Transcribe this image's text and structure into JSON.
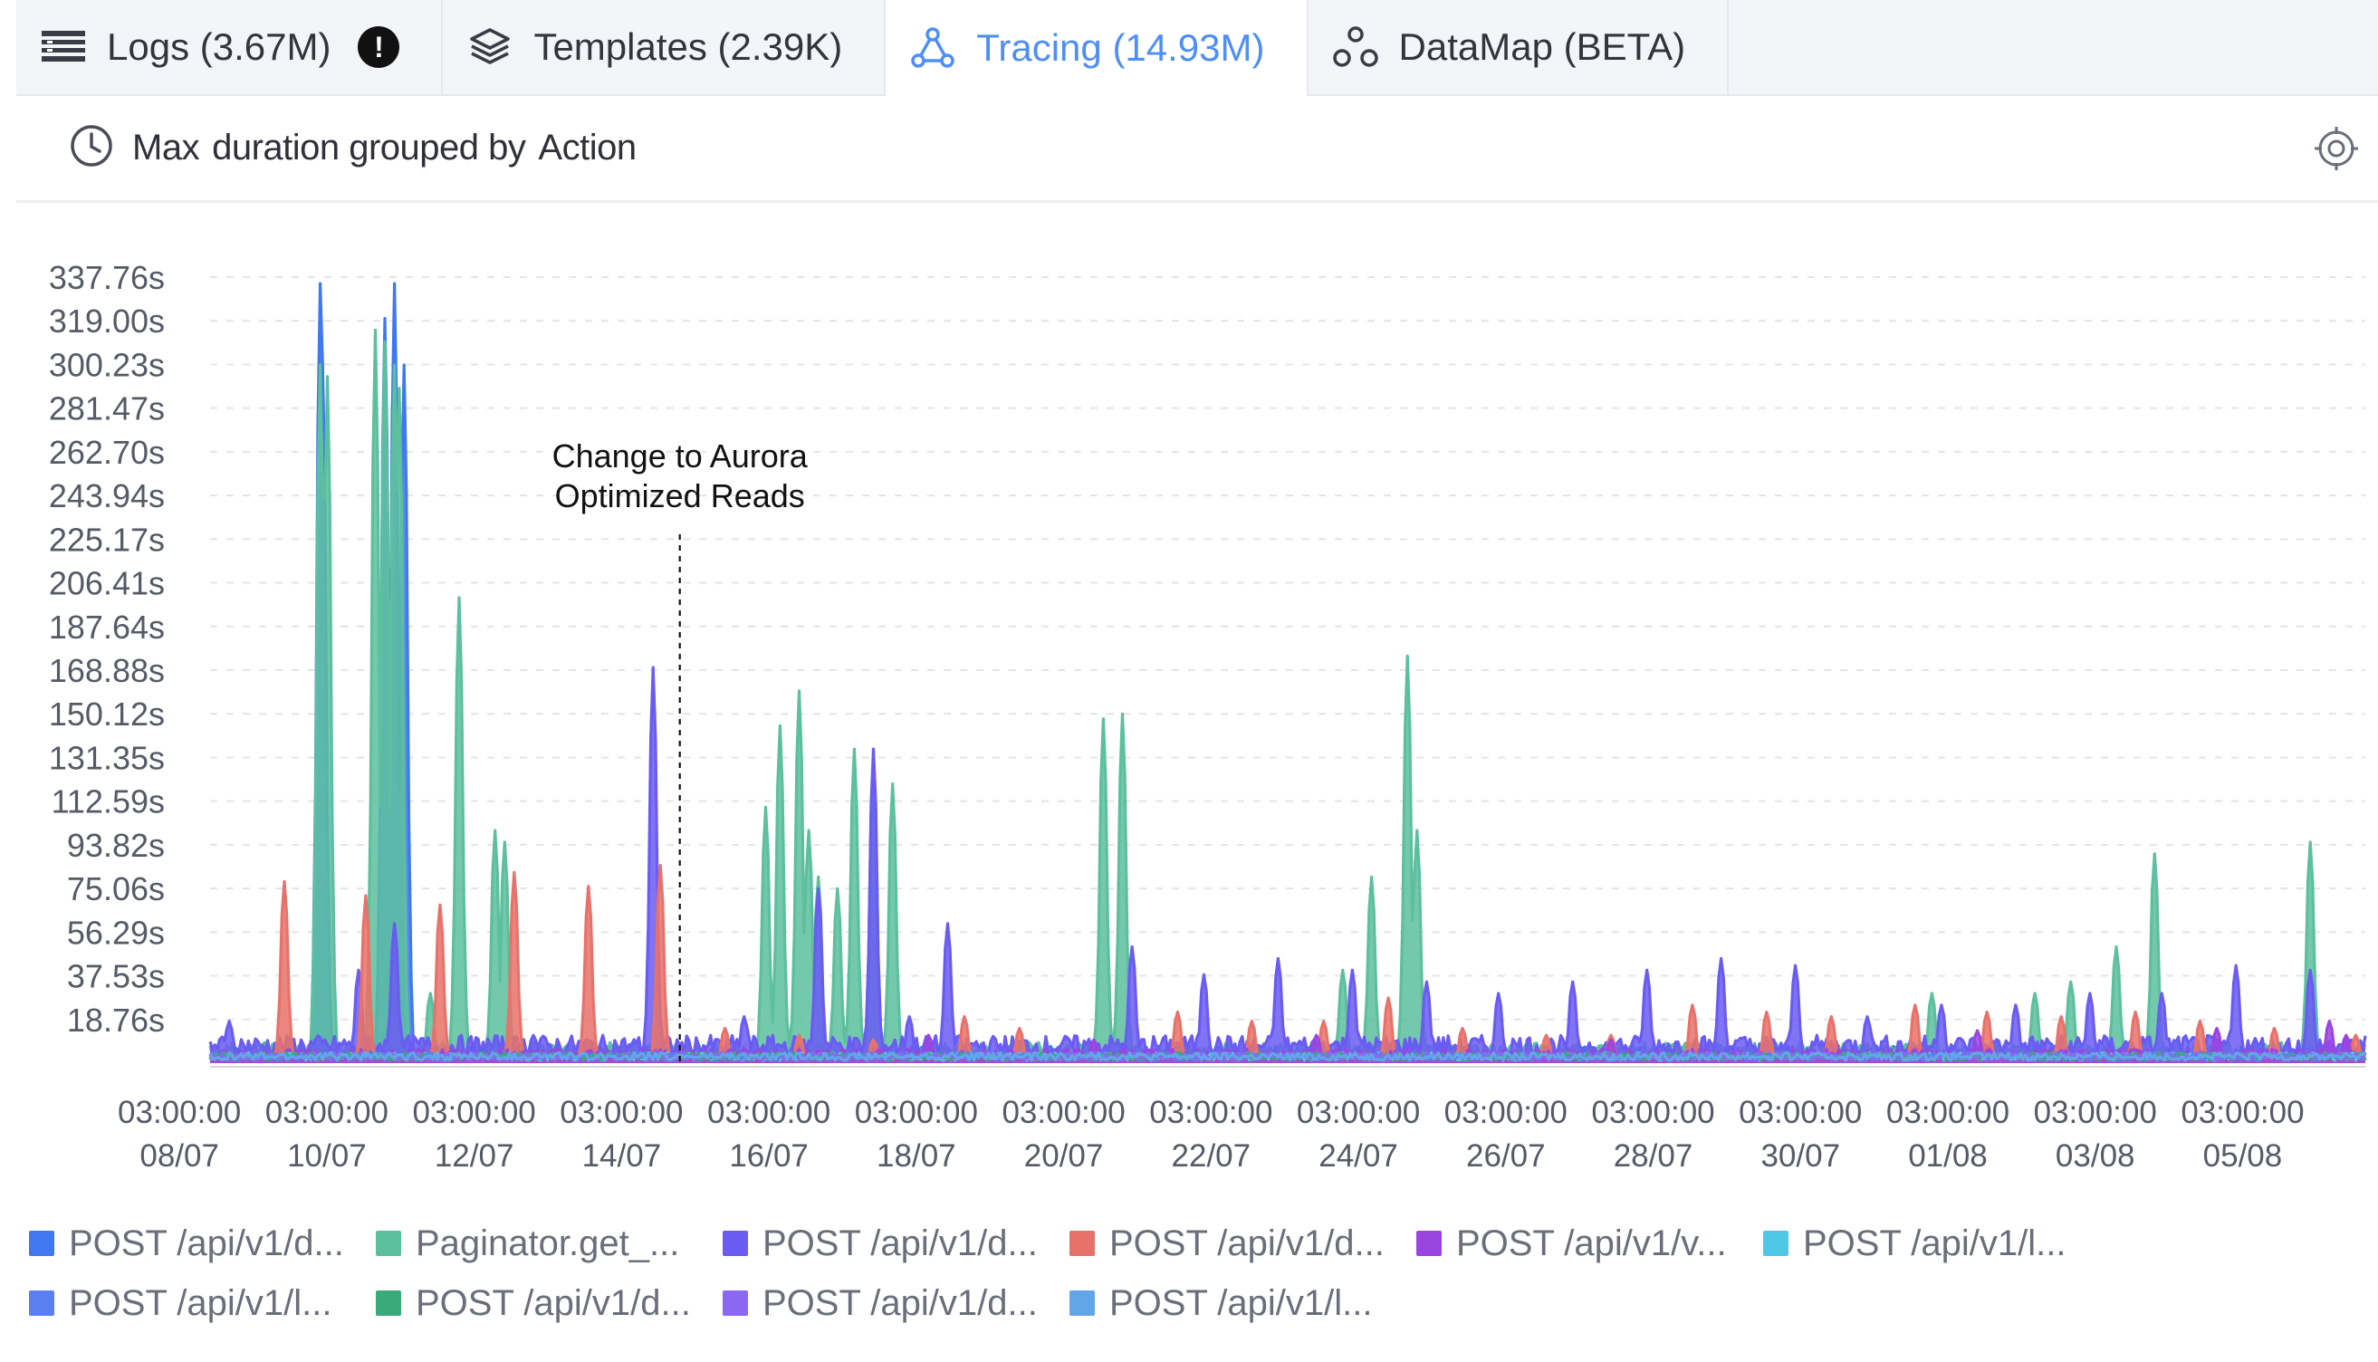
{
  "tabs": [
    {
      "label": "Logs (3.67M)",
      "icon": "list-icon",
      "alert": "!",
      "active": false
    },
    {
      "label": "Templates (2.39K)",
      "icon": "layers-icon",
      "active": false
    },
    {
      "label": "Tracing (14.93M)",
      "icon": "tracing-icon",
      "active": true
    },
    {
      "label": "DataMap (BETA)",
      "icon": "datamap-icon",
      "active": false
    }
  ],
  "header": {
    "aggregation": "Max",
    "metric_text": "duration grouped by",
    "group_by": "Action"
  },
  "colors": {
    "accent": "#4f8ef7",
    "blue": "#3f78f0",
    "teal": "#5cbf9e",
    "indigo": "#6a5cf2",
    "salmon": "#e8726a",
    "purple": "#9a45e0",
    "cyan": "#4fc7e6",
    "sky": "#62a6e8",
    "violet": "#8a68f2",
    "green": "#3aaa7a"
  },
  "chart_data": {
    "type": "line",
    "y_ticks": [
      "18.76s",
      "37.53s",
      "56.29s",
      "75.06s",
      "93.82s",
      "112.59s",
      "131.35s",
      "150.12s",
      "168.88s",
      "187.64s",
      "206.41s",
      "225.17s",
      "243.94s",
      "262.70s",
      "281.47s",
      "300.23s",
      "319.00s",
      "337.76s"
    ],
    "ylim": [
      0,
      337.76
    ],
    "x_ticks": [
      {
        "time": "03:00:00",
        "date": "08/07"
      },
      {
        "time": "03:00:00",
        "date": "10/07"
      },
      {
        "time": "03:00:00",
        "date": "12/07"
      },
      {
        "time": "03:00:00",
        "date": "14/07"
      },
      {
        "time": "03:00:00",
        "date": "16/07"
      },
      {
        "time": "03:00:00",
        "date": "18/07"
      },
      {
        "time": "03:00:00",
        "date": "20/07"
      },
      {
        "time": "03:00:00",
        "date": "22/07"
      },
      {
        "time": "03:00:00",
        "date": "24/07"
      },
      {
        "time": "03:00:00",
        "date": "26/07"
      },
      {
        "time": "03:00:00",
        "date": "28/07"
      },
      {
        "time": "03:00:00",
        "date": "30/07"
      },
      {
        "time": "03:00:00",
        "date": "01/08"
      },
      {
        "time": "03:00:00",
        "date": "03/08"
      },
      {
        "time": "03:00:00",
        "date": "05/08"
      }
    ],
    "xlim": [
      "08/07 00:00",
      "06/08 06:00"
    ],
    "grid": true,
    "annotation": {
      "lines": [
        "Change to Aurora",
        "Optimized Reads"
      ],
      "x": "14/07 09:00"
    },
    "series": [
      {
        "name": "POST /api/v1/d...",
        "color": "#3f78f0",
        "baseline": 5,
        "spikes": [
          [
            "09/07 12:00",
            335
          ],
          [
            "09/07 13:00",
            300
          ],
          [
            "10/07 09:00",
            320
          ],
          [
            "10/07 12:00",
            335
          ],
          [
            "10/07 15:00",
            300
          ],
          [
            "09/07 13:00",
            70
          ]
        ]
      },
      {
        "name": "Paginator.get_...",
        "color": "#5cbf9e",
        "baseline": 6,
        "spikes": [
          [
            "09/07 12:00",
            300
          ],
          [
            "09/07 14:00",
            295
          ],
          [
            "10/07 06:00",
            315
          ],
          [
            "10/07 09:00",
            310
          ],
          [
            "10/07 12:00",
            300
          ],
          [
            "10/07 14:00",
            290
          ],
          [
            "11/07 00:00",
            30
          ],
          [
            "11/07 09:00",
            200
          ],
          [
            "11/07 21:00",
            100
          ],
          [
            "12/07 00:00",
            95
          ],
          [
            "15/07 13:00",
            110
          ],
          [
            "15/07 18:00",
            145
          ],
          [
            "16/07 00:00",
            160
          ],
          [
            "16/07 03:00",
            100
          ],
          [
            "16/07 06:00",
            80
          ],
          [
            "16/07 12:00",
            75
          ],
          [
            "16/07 18:00",
            135
          ],
          [
            "17/07 00:00",
            130
          ],
          [
            "17/07 06:00",
            120
          ],
          [
            "20/07 03:00",
            148
          ],
          [
            "20/07 09:00",
            150
          ],
          [
            "23/07 09:00",
            40
          ],
          [
            "23/07 18:00",
            80
          ],
          [
            "24/07 06:00",
            175
          ],
          [
            "24/07 09:00",
            100
          ],
          [
            "31/07 09:00",
            30
          ],
          [
            "01/08 18:00",
            30
          ],
          [
            "02/08 06:00",
            35
          ],
          [
            "02/08 21:00",
            50
          ],
          [
            "03/08 09:00",
            90
          ],
          [
            "05/08 12:00",
            95
          ]
        ]
      },
      {
        "name": "POST /api/v1/d...",
        "color": "#6a5cf2",
        "baseline": 8,
        "spikes": [
          [
            "08/07 06:00",
            18
          ],
          [
            "10/07 00:00",
            40
          ],
          [
            "10/07 12:00",
            60
          ],
          [
            "12/07 09:00",
            12
          ],
          [
            "14/07 00:00",
            170
          ],
          [
            "15/07 06:00",
            20
          ],
          [
            "16/07 06:00",
            75
          ],
          [
            "17/07 00:00",
            135
          ],
          [
            "17/07 12:00",
            20
          ],
          [
            "18/07 00:00",
            60
          ],
          [
            "20/07 12:00",
            50
          ],
          [
            "21/07 12:00",
            38
          ],
          [
            "22/07 12:00",
            45
          ],
          [
            "23/07 12:00",
            40
          ],
          [
            "24/07 12:00",
            35
          ],
          [
            "25/07 12:00",
            30
          ],
          [
            "26/07 12:00",
            35
          ],
          [
            "27/07 12:00",
            40
          ],
          [
            "28/07 12:00",
            45
          ],
          [
            "29/07 12:00",
            42
          ],
          [
            "30/07 12:00",
            20
          ],
          [
            "31/07 12:00",
            25
          ],
          [
            "01/08 12:00",
            25
          ],
          [
            "02/08 12:00",
            30
          ],
          [
            "03/08 12:00",
            30
          ],
          [
            "04/08 12:00",
            42
          ],
          [
            "05/08 12:00",
            40
          ]
        ]
      },
      {
        "name": "POST /api/v1/d...",
        "color": "#e8726a",
        "baseline": 2,
        "spikes": [
          [
            "09/07 00:00",
            78
          ],
          [
            "10/07 03:00",
            72
          ],
          [
            "11/07 03:00",
            68
          ],
          [
            "12/07 03:00",
            82
          ],
          [
            "13/07 03:00",
            76
          ],
          [
            "14/07 03:00",
            85
          ],
          [
            "15/07 00:00",
            15
          ],
          [
            "16/07 00:00",
            12
          ],
          [
            "17/07 00:00",
            10
          ],
          [
            "18/07 06:00",
            20
          ],
          [
            "19/07 00:00",
            15
          ],
          [
            "21/07 03:00",
            22
          ],
          [
            "22/07 03:00",
            18
          ],
          [
            "23/07 03:00",
            18
          ],
          [
            "24/07 00:00",
            28
          ],
          [
            "25/07 00:00",
            15
          ],
          [
            "26/07 03:00",
            12
          ],
          [
            "27/07 00:00",
            12
          ],
          [
            "28/07 03:00",
            25
          ],
          [
            "29/07 03:00",
            22
          ],
          [
            "30/07 00:00",
            20
          ],
          [
            "31/07 03:00",
            25
          ],
          [
            "01/08 03:00",
            22
          ],
          [
            "02/08 03:00",
            20
          ],
          [
            "03/08 03:00",
            22
          ],
          [
            "04/08 00:00",
            18
          ],
          [
            "05/08 00:00",
            15
          ],
          [
            "06/08 03:00",
            12
          ]
        ]
      },
      {
        "name": "POST /api/v1/v...",
        "color": "#9a45e0",
        "baseline": 4,
        "spikes": [
          [
            "17/07 18:00",
            12
          ],
          [
            "20/07 00:00",
            10
          ],
          [
            "23/07 00:00",
            12
          ],
          [
            "27/07 00:00",
            10
          ],
          [
            "01/08 00:00",
            14
          ],
          [
            "04/08 06:00",
            15
          ],
          [
            "05/08 18:00",
            18
          ],
          [
            "06/08 00:00",
            12
          ]
        ]
      },
      {
        "name": "POST /api/v1/l...",
        "color": "#4fc7e6",
        "baseline": 3,
        "spikes": []
      },
      {
        "name": "POST /api/v1/l...",
        "color": "#5a7ff0",
        "baseline": 3,
        "spikes": []
      },
      {
        "name": "POST /api/v1/d...",
        "color": "#3aaa7a",
        "baseline": 3,
        "spikes": []
      },
      {
        "name": "POST /api/v1/d...",
        "color": "#8a68f2",
        "baseline": 3,
        "spikes": []
      },
      {
        "name": "POST /api/v1/l...",
        "color": "#62a6e8",
        "baseline": 3,
        "spikes": []
      }
    ]
  }
}
